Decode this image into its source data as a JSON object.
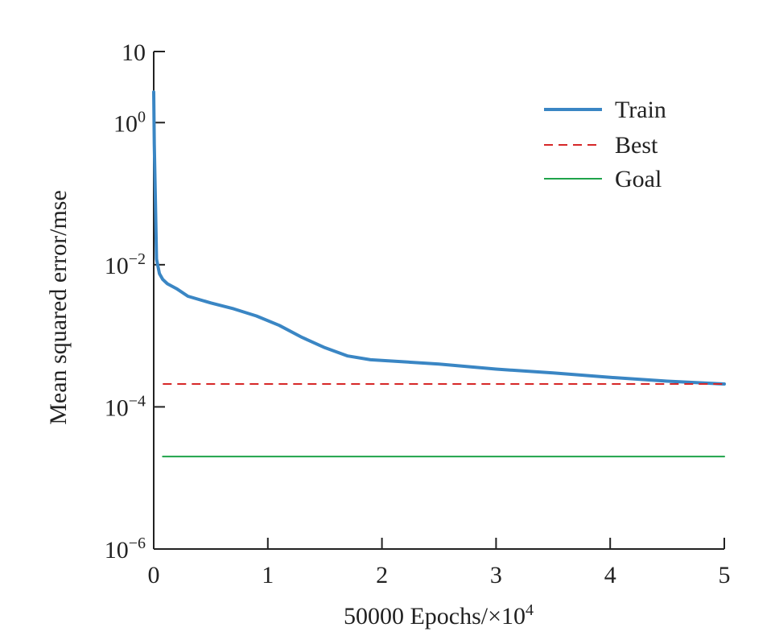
{
  "chart_data": {
    "type": "line",
    "xlabel": "50000 Epochs/×10",
    "xlabel_sup": "4",
    "ylabel": "Mean squared error/mse",
    "x_scale": "linear",
    "y_scale": "log",
    "xlim": [
      0,
      5
    ],
    "ylim": [
      1e-06,
      10
    ],
    "x_ticks": [
      {
        "value": 0,
        "label": "0"
      },
      {
        "value": 1,
        "label": "1"
      },
      {
        "value": 2,
        "label": "2"
      },
      {
        "value": 3,
        "label": "3"
      },
      {
        "value": 4,
        "label": "4"
      },
      {
        "value": 5,
        "label": "5"
      }
    ],
    "y_ticks": [
      {
        "value": 10,
        "base": "10",
        "exp": ""
      },
      {
        "value": 1,
        "base": "10",
        "exp": "0"
      },
      {
        "value": 0.01,
        "base": "10",
        "exp": "−2"
      },
      {
        "value": 0.0001,
        "base": "10",
        "exp": "−4"
      },
      {
        "value": 1e-06,
        "base": "10",
        "exp": "−6"
      }
    ],
    "grid": false,
    "legend_position": "top-right",
    "series": [
      {
        "name": "Train",
        "style": "solid",
        "color": "#3a86c4",
        "points": [
          {
            "x": 0,
            "y": 2.7
          },
          {
            "x": 0.005,
            "y": 0.5
          },
          {
            "x": 0.015,
            "y": 0.08
          },
          {
            "x": 0.025,
            "y": 0.012
          },
          {
            "x": 0.05,
            "y": 0.0075
          },
          {
            "x": 0.08,
            "y": 0.0062
          },
          {
            "x": 0.12,
            "y": 0.0054
          },
          {
            "x": 0.2,
            "y": 0.0046
          },
          {
            "x": 0.3,
            "y": 0.0036
          },
          {
            "x": 0.5,
            "y": 0.0029
          },
          {
            "x": 0.7,
            "y": 0.0024
          },
          {
            "x": 0.9,
            "y": 0.0019
          },
          {
            "x": 1.1,
            "y": 0.0014
          },
          {
            "x": 1.3,
            "y": 0.00095
          },
          {
            "x": 1.5,
            "y": 0.00068
          },
          {
            "x": 1.7,
            "y": 0.00052
          },
          {
            "x": 1.9,
            "y": 0.00046
          },
          {
            "x": 2.2,
            "y": 0.00043
          },
          {
            "x": 2.5,
            "y": 0.0004
          },
          {
            "x": 3.0,
            "y": 0.00034
          },
          {
            "x": 3.5,
            "y": 0.0003
          },
          {
            "x": 4.0,
            "y": 0.00026
          },
          {
            "x": 4.5,
            "y": 0.00023
          },
          {
            "x": 5.0,
            "y": 0.00021
          }
        ]
      },
      {
        "name": "Best",
        "style": "dashed",
        "color": "#d62728",
        "points": [
          {
            "x": 0.08,
            "y": 0.00021
          },
          {
            "x": 5.0,
            "y": 0.00021
          }
        ]
      },
      {
        "name": "Goal",
        "style": "solid",
        "color": "#1fa34a",
        "points": [
          {
            "x": 0.08,
            "y": 2e-05
          },
          {
            "x": 5.0,
            "y": 2e-05
          }
        ]
      }
    ]
  }
}
